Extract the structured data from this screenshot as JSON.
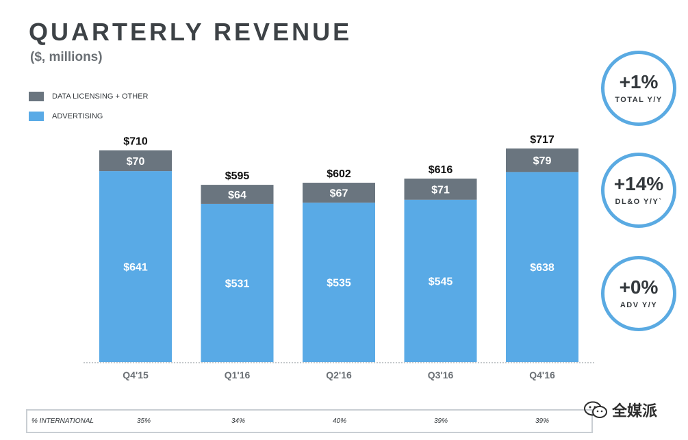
{
  "header": {
    "title": "QUARTERLY REVENUE",
    "subtitle": "($, millions)"
  },
  "legend": [
    {
      "label": "DATA LICENSING + OTHER",
      "color": "#6a757f"
    },
    {
      "label": "ADVERTISING",
      "color": "#59aae6"
    }
  ],
  "chart_data": {
    "type": "bar",
    "stacked": true,
    "categories": [
      "Q4'15",
      "Q1'16",
      "Q2'16",
      "Q3'16",
      "Q4'16"
    ],
    "series": [
      {
        "name": "ADVERTISING",
        "values": [
          641,
          531,
          535,
          545,
          638
        ],
        "labels": [
          "$641",
          "$531",
          "$535",
          "$545",
          "$638"
        ],
        "color": "#59aae6"
      },
      {
        "name": "DATA LICENSING + OTHER",
        "values": [
          70,
          64,
          67,
          71,
          79
        ],
        "labels": [
          "$70",
          "$64",
          "$67",
          "$71",
          "$79"
        ],
        "color": "#6a757f"
      }
    ],
    "totals": [
      710,
      595,
      602,
      616,
      717
    ],
    "total_labels": [
      "$710",
      "$595",
      "$602",
      "$616",
      "$717"
    ],
    "ylim": [
      0,
      717
    ],
    "title": "QUARTERLY REVENUE",
    "xlabel": "",
    "ylabel": "",
    "grid": false,
    "legend_position": "top-left"
  },
  "badges": [
    {
      "value": "+1%",
      "caption": "TOTAL Y/Y"
    },
    {
      "value": "+14%",
      "caption": "DL&O Y/Y`"
    },
    {
      "value": "+0%",
      "caption": "ADV Y/Y"
    }
  ],
  "international": {
    "label": "% INTERNATIONAL",
    "values": [
      "35%",
      "34%",
      "40%",
      "39%",
      "39%"
    ]
  },
  "watermark": {
    "text": "全媒派",
    "icon": "wechat-icon"
  }
}
